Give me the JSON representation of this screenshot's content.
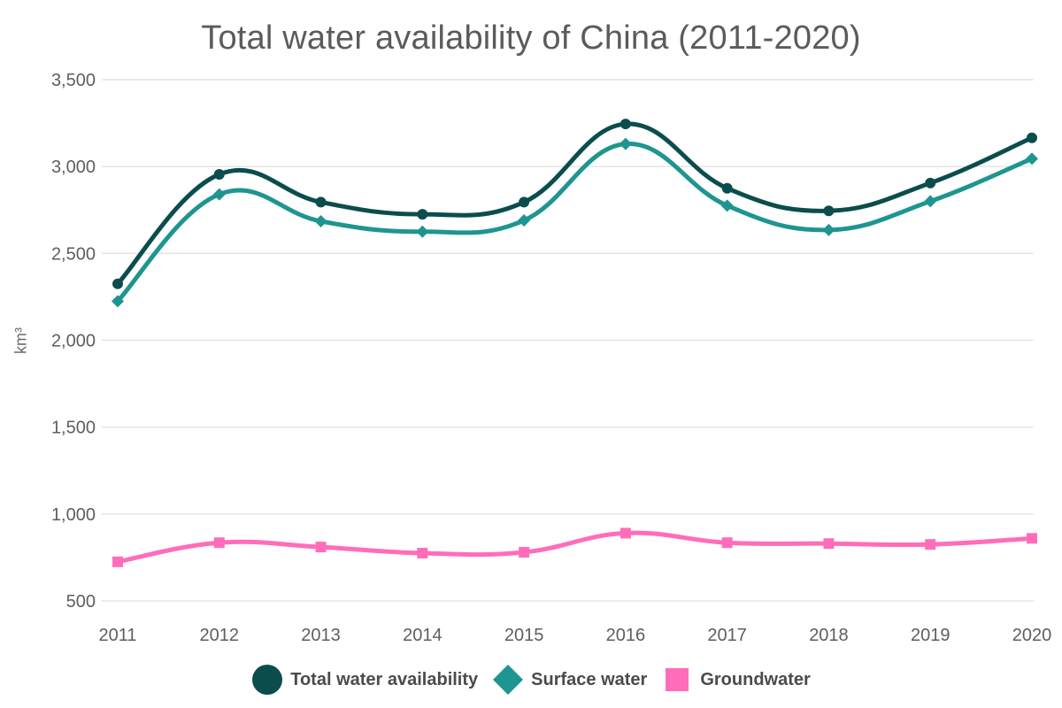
{
  "chart_data": {
    "type": "line",
    "title": "Total water availability of China (2011-2020)",
    "xlabel": "",
    "ylabel": "km³",
    "x": [
      "2011",
      "2012",
      "2013",
      "2014",
      "2015",
      "2016",
      "2017",
      "2018",
      "2019",
      "2020"
    ],
    "ylim": [
      500,
      3500
    ],
    "y_ticks": [
      500,
      1000,
      1500,
      2000,
      2500,
      3000,
      3500
    ],
    "y_tick_labels": [
      "500",
      "1,000",
      "1,500",
      "2,000",
      "2,500",
      "3,000",
      "3,500"
    ],
    "grid": "horizontal",
    "legend_position": "bottom",
    "series": [
      {
        "name": "Total water availability",
        "color": "#0b4d4d",
        "marker": "circle",
        "values": [
          2325,
          2955,
          2795,
          2725,
          2795,
          3245,
          2875,
          2745,
          2905,
          3165
        ]
      },
      {
        "name": "Surface water",
        "color": "#1e9590",
        "marker": "diamond",
        "values": [
          2225,
          2840,
          2685,
          2625,
          2690,
          3130,
          2775,
          2635,
          2800,
          3045
        ]
      },
      {
        "name": "Groundwater",
        "color": "#ff6dba",
        "marker": "square",
        "values": [
          725,
          835,
          810,
          775,
          780,
          890,
          835,
          830,
          825,
          860
        ]
      }
    ]
  }
}
